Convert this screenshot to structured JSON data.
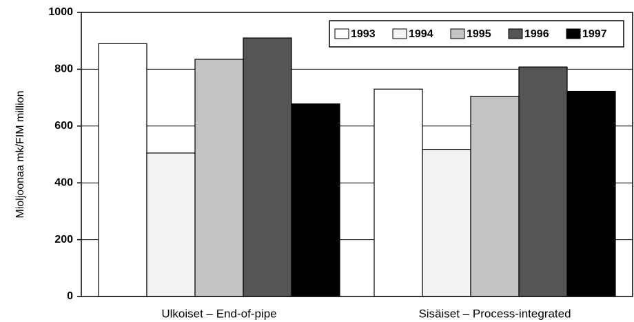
{
  "chart_data": {
    "type": "bar",
    "y_label": "Mioljoonaa mk/FIM million",
    "categories": [
      "Ulkoiset – End-of-pipe",
      "Sisäiset – Process-integrated"
    ],
    "series": [
      {
        "name": "1993",
        "color": "#ffffff",
        "values": [
          890,
          730
        ]
      },
      {
        "name": "1994",
        "color": "#f3f3f3",
        "values": [
          505,
          518
        ]
      },
      {
        "name": "1995",
        "color": "#c4c4c4",
        "values": [
          835,
          705
        ]
      },
      {
        "name": "1996",
        "color": "#555555",
        "values": [
          910,
          808
        ]
      },
      {
        "name": "1997",
        "color": "#000000",
        "values": [
          678,
          722
        ]
      }
    ],
    "ylim": [
      0,
      1000
    ],
    "yticks": [
      0,
      200,
      400,
      600,
      800,
      1000
    ],
    "grid": true,
    "legend": "top-right"
  }
}
